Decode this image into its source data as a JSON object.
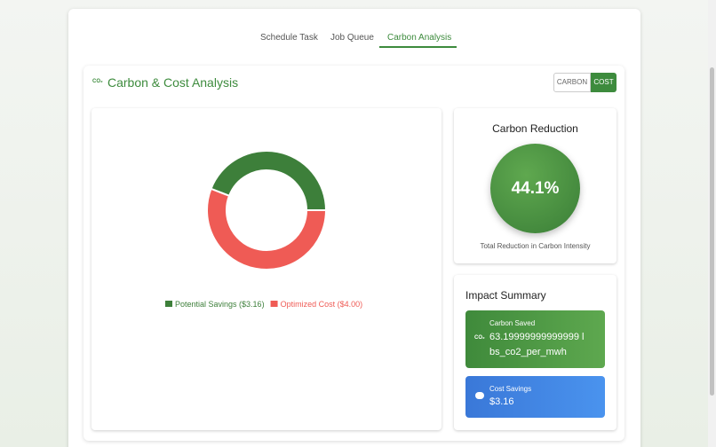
{
  "tabs": [
    "Schedule Task",
    "Job Queue",
    "Carbon Analysis"
  ],
  "panel": {
    "icon": "CO₂",
    "title": "Carbon & Cost Analysis",
    "toggle": [
      "CARBON",
      "COST"
    ]
  },
  "chart_data": {
    "type": "pie",
    "donut": true,
    "categories": [
      "Potential Savings ($3.16)",
      "Optimized Cost ($4.00)"
    ],
    "values": [
      3.16,
      4.0
    ],
    "colors": [
      "#3d7f3a",
      "#ef5b55"
    ]
  },
  "reduction": {
    "title": "Carbon Reduction",
    "value": "44.1%",
    "caption": "Total Reduction in Carbon Intensity"
  },
  "impact": {
    "title": "Impact Summary",
    "carbon": {
      "label": "Carbon Saved",
      "value": "63.19999999999999 lbs_co2_per_mwh"
    },
    "cost": {
      "label": "Cost Savings",
      "value": "$3.16"
    }
  }
}
